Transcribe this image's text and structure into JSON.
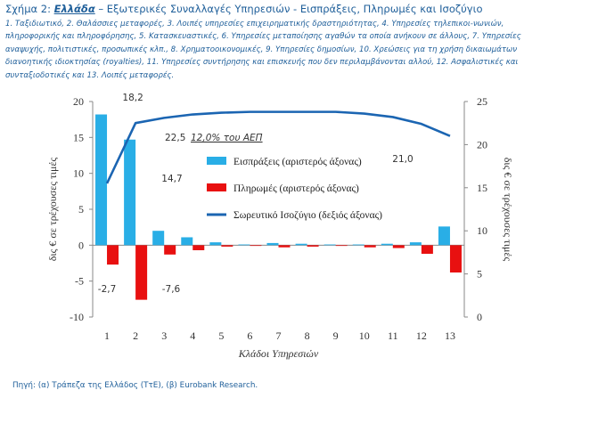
{
  "header": {
    "prefix": "Σχήμα 2: ",
    "country": "Ελλάδα",
    "title_rest": " – Εξωτερικές Συναλλαγές Υπηρεσιών - Εισπράξεις, Πληρωμές και Ισοζύγιο",
    "notes": "1. Ταξιδιωτικό, 2. Θαλάσσιες μεταφορές, 3. Λοιπές υπηρεσίες επιχειρηματικής δραστηριότητας, 4. Υπηρεσίες τηλεπικοι-νωνιών, πληροφορικής και πληροφόρησης, 5. Κατασκευαστικές, 6. Υπηρεσίες μεταποίησης αγαθών τα οποία ανήκουν σε άλλους, 7. Υπηρεσίες αναψυχής, πολιτιστικές, προσωπικές κλπ., 8. Χρηματοοικονομικές, 9. Υπηρεσίες δημοσίων, 10. Χρεώσεις για τη χρήση δικαιωμάτων διανοητικής ιδιοκτησίας (royalties), 11. Υπηρεσίες συντήρησης και επισκευής που δεν περιλαμβάνονται αλλού, 12. Ασφαλιστικές και συνταξιοδοτικές και 13. Λοιπές μεταφορές."
  },
  "source": "Πηγή: (α) Τράπεζα της Ελλάδος (ΤτΕ), (β) Eurobank Research.",
  "colors": {
    "receipts": "#29aee6",
    "payments": "#e81010",
    "balance": "#1b65b2",
    "text": "#1f5f9a"
  },
  "chart_data": {
    "type": "bar",
    "categories": [
      "1",
      "2",
      "3",
      "4",
      "5",
      "6",
      "7",
      "8",
      "9",
      "10",
      "11",
      "12",
      "13"
    ],
    "xlabel": "Κλάδοι Υπηρεσιών",
    "ylabel_left": "δις € σε τρέχουσες τιμές",
    "ylabel_right": "δις € σε τρέχουσες τιμές",
    "ylim_left": [
      -10,
      20
    ],
    "yticks_left": [
      20,
      15,
      10,
      5,
      0,
      -5,
      -10
    ],
    "ylim_right": [
      0,
      25
    ],
    "yticks_right": [
      25,
      20,
      15,
      10,
      5,
      0
    ],
    "grid": false,
    "legend_position": "center",
    "series": [
      {
        "name": "Εισπράξεις (αριστερός άξονας)",
        "type": "bar",
        "axis": "left",
        "values": [
          18.2,
          14.7,
          2.0,
          1.1,
          0.4,
          0.1,
          0.3,
          0.2,
          0.1,
          0.1,
          0.2,
          0.4,
          2.6
        ]
      },
      {
        "name": "Πληρωμές (αριστερός άξονας)",
        "type": "bar",
        "axis": "left",
        "values": [
          -2.7,
          -7.6,
          -1.3,
          -0.7,
          -0.2,
          0.0,
          -0.3,
          -0.2,
          -0.1,
          -0.3,
          -0.4,
          -1.2,
          -3.8
        ]
      },
      {
        "name": "Σωρευτικό Ισοζύγιο (δεξιός άξονας)",
        "type": "line",
        "axis": "right",
        "values": [
          15.5,
          22.5,
          23.1,
          23.5,
          23.7,
          23.8,
          23.8,
          23.8,
          23.8,
          23.6,
          23.2,
          22.4,
          21.0
        ]
      }
    ],
    "data_labels": {
      "receipts_1": "18,2",
      "receipts_2": "14,7",
      "payments_1": "-2,7",
      "payments_2": "-7,6",
      "balance_2": "22,5",
      "balance_13": "21,0"
    },
    "annotation": "12,0% του ΑΕΠ"
  }
}
